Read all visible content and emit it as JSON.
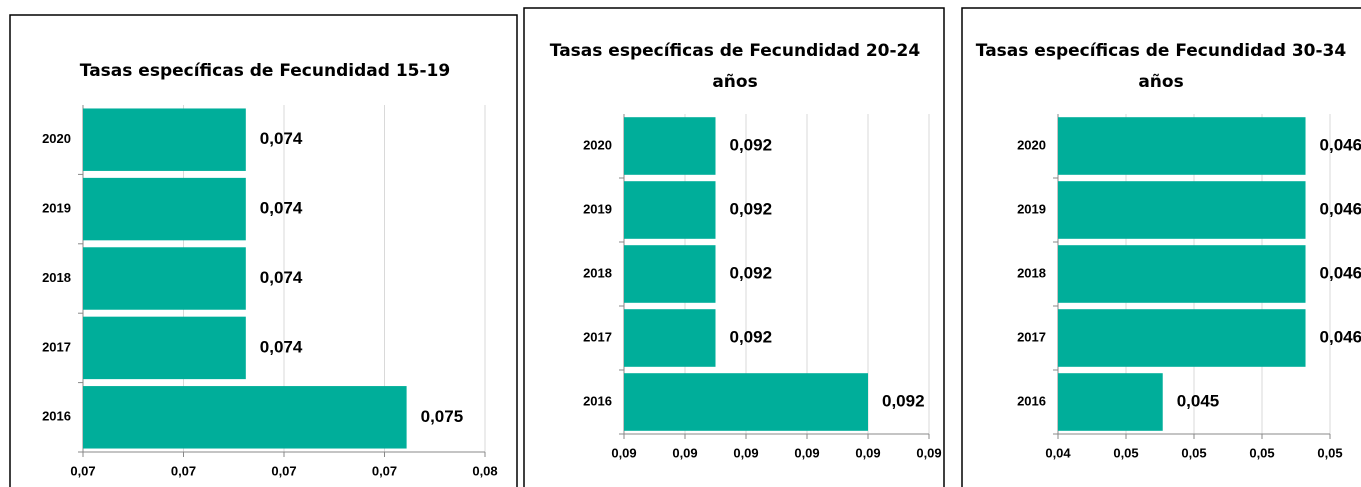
{
  "chart_data": [
    {
      "type": "bar",
      "title": "Tasas específicas de Fecundidad 15-19",
      "categories": [
        "2016",
        "2017",
        "2018",
        "2019",
        "2020"
      ],
      "values": [
        0.07461,
        0.07381,
        0.07381,
        0.07381,
        0.07381
      ],
      "value_labels": [
        "0,075",
        "0,074",
        "0,074",
        "0,074",
        "0,074"
      ],
      "color": "#00ae9a",
      "orientation": "horizontal",
      "grid": true,
      "xlim": [
        0.073,
        0.075
      ],
      "xticks": [
        {
          "value": 0.073,
          "label": "0,07"
        },
        {
          "value": 0.0735,
          "label": "0,07"
        },
        {
          "value": 0.074,
          "label": "0,07"
        },
        {
          "value": 0.0745,
          "label": "0,07"
        },
        {
          "value": 0.075,
          "label": "0,08"
        }
      ]
    },
    {
      "type": "bar",
      "title": "Tasas específicas de Fecundidad 20-24 años",
      "categories": [
        "2016",
        "2017",
        "2018",
        "2019",
        "2020"
      ],
      "values": [
        0.092,
        0.09175,
        0.09175,
        0.09175,
        0.09175
      ],
      "value_labels": [
        "0,092",
        "0,092",
        "0,092",
        "0,092",
        "0,092"
      ],
      "color": "#00ae9a",
      "orientation": "horizontal",
      "grid": true,
      "xlim": [
        0.0916,
        0.0921
      ],
      "xticks": [
        {
          "value": 0.0916,
          "label": "0,09"
        },
        {
          "value": 0.0917,
          "label": "0,09"
        },
        {
          "value": 0.0918,
          "label": "0,09"
        },
        {
          "value": 0.0919,
          "label": "0,09"
        },
        {
          "value": 0.092,
          "label": "0,09"
        },
        {
          "value": 0.0921,
          "label": "0,09"
        }
      ]
    },
    {
      "type": "bar",
      "title": "Tasas específicas de Fecundidad 30-34 años",
      "categories": [
        "2016",
        "2017",
        "2018",
        "2019",
        "2020"
      ],
      "values": [
        0.04537,
        0.04642,
        0.04642,
        0.04642,
        0.04642
      ],
      "value_labels": [
        "0,045",
        "0,046",
        "0,046",
        "0,046",
        "0,046"
      ],
      "color": "#00ae9a",
      "orientation": "horizontal",
      "grid": true,
      "xlim": [
        0.0446,
        0.0466
      ],
      "xticks": [
        {
          "value": 0.0446,
          "label": "0,04"
        },
        {
          "value": 0.0451,
          "label": "0,05"
        },
        {
          "value": 0.0456,
          "label": "0,05"
        },
        {
          "value": 0.0461,
          "label": "0,05"
        },
        {
          "value": 0.0466,
          "label": "0,05"
        }
      ]
    }
  ]
}
